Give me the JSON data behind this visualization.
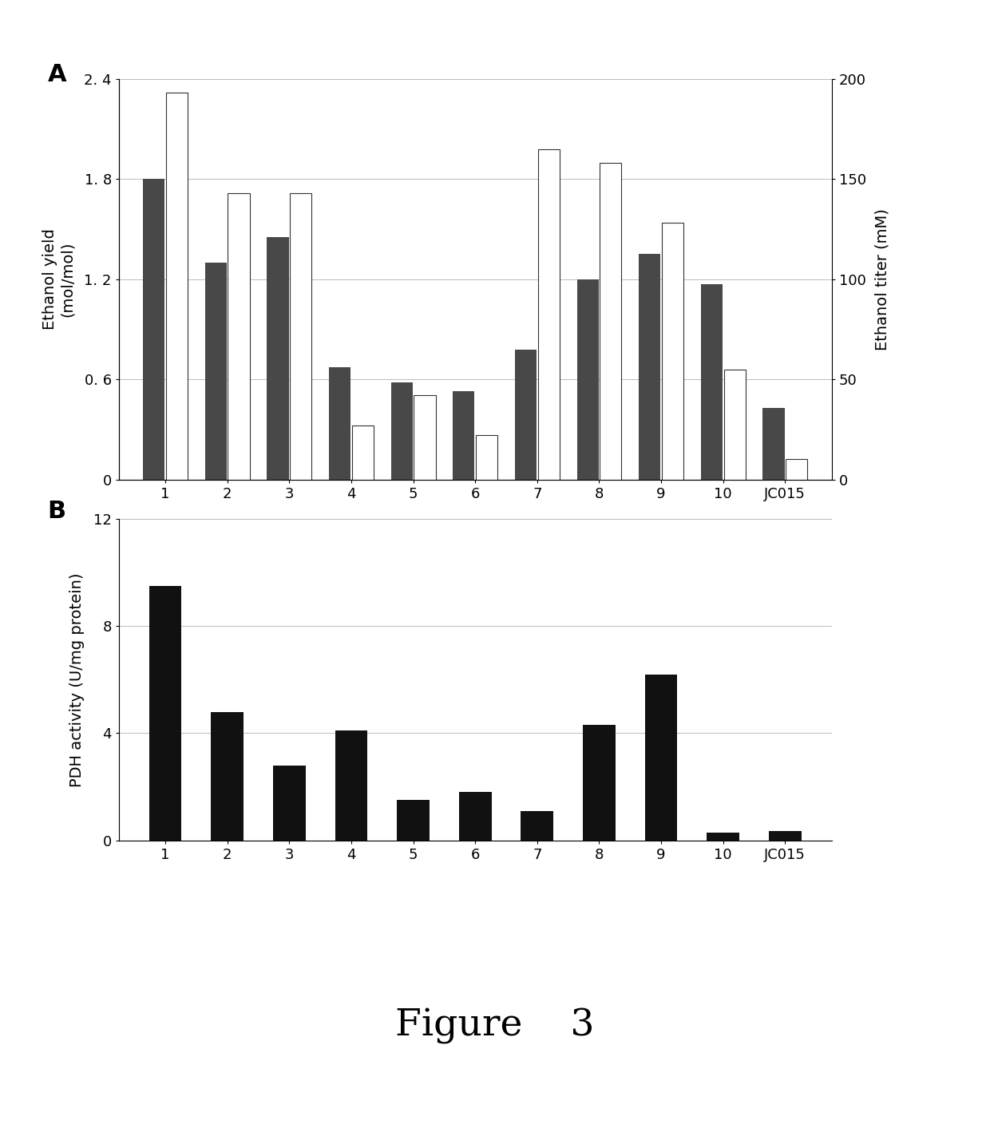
{
  "categories": [
    "1",
    "2",
    "3",
    "4",
    "5",
    "6",
    "7",
    "8",
    "9",
    "10",
    "JC015"
  ],
  "panel_a": {
    "dark_bars": [
      1.8,
      1.3,
      1.45,
      0.67,
      0.58,
      0.53,
      0.78,
      1.2,
      1.35,
      1.17,
      0.43
    ],
    "light_bars_mM": [
      193,
      143,
      143,
      27,
      42,
      22,
      165,
      158,
      128,
      55,
      10
    ],
    "ylabel_left": "Ethanol yield\n(mol/mol)",
    "ylabel_right": "Ethanol titer (mM)",
    "ylim_left": [
      0,
      2.4
    ],
    "ylim_right": [
      0,
      200
    ],
    "yticks_left": [
      0,
      0.6,
      1.2,
      1.8,
      2.4
    ],
    "yticks_right": [
      0,
      50,
      100,
      150,
      200
    ],
    "panel_label": "A",
    "dark_color": "#484848",
    "light_color": "#ffffff",
    "light_edgecolor": "#333333"
  },
  "panel_b": {
    "values": [
      9.5,
      4.8,
      2.8,
      4.1,
      1.5,
      1.8,
      1.1,
      4.3,
      6.2,
      0.3,
      0.35
    ],
    "ylabel": "PDH activity (U/mg protein)",
    "ylim": [
      0,
      12
    ],
    "yticks": [
      0,
      4,
      8,
      12
    ],
    "panel_label": "B",
    "bar_color": "#111111"
  },
  "figure_title": "Figure    3",
  "title_fontsize": 34,
  "label_fontsize": 14,
  "tick_fontsize": 13,
  "panel_label_fontsize": 22,
  "grid_color": "#bbbbbb",
  "bar_width": 0.35,
  "bar_gap": 0.02
}
